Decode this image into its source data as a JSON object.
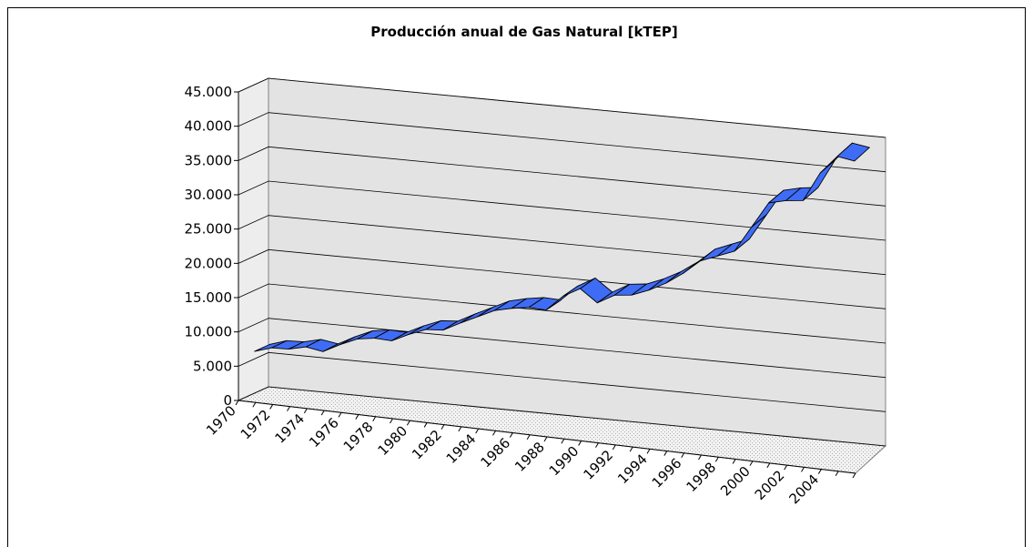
{
  "chart_data": {
    "type": "line3d",
    "title": "Producción anual de Gas Natural [kTEP]",
    "categories": [
      "1970",
      null,
      "1972",
      null,
      "1974",
      null,
      "1976",
      null,
      "1978",
      null,
      "1980",
      null,
      "1982",
      null,
      "1984",
      null,
      "1986",
      null,
      "1988",
      null,
      "1990",
      null,
      "1992",
      null,
      "1994",
      null,
      "1996",
      null,
      "1998",
      null,
      "2000",
      null,
      "2002",
      null,
      "2004",
      null
    ],
    "values": [
      6800,
      7600,
      7700,
      8300,
      7900,
      9200,
      10300,
      10700,
      10600,
      11800,
      12800,
      13000,
      14300,
      15500,
      16700,
      17300,
      17700,
      17600,
      19900,
      21300,
      19500,
      20900,
      21200,
      22200,
      23500,
      25200,
      27300,
      28300,
      29300,
      33100,
      36900,
      37500,
      37800,
      42100,
      44800,
      44400
    ],
    "color": "#3f6cf5",
    "ylim": [
      0,
      45000
    ],
    "yticks": [
      0,
      {
        "value": 5000,
        "label": "5.000"
      },
      {
        "value": 10000,
        "label": "10.000"
      },
      {
        "value": 15000,
        "label": "15.000"
      },
      {
        "value": 20000,
        "label": "20.000"
      },
      {
        "value": 25000,
        "label": "25.000"
      },
      {
        "value": 30000,
        "label": "30.000"
      },
      {
        "value": 35000,
        "label": "35.000"
      },
      {
        "value": 40000,
        "label": "40.000"
      },
      {
        "value": 45000,
        "label": "45.000"
      }
    ],
    "grid": true
  }
}
